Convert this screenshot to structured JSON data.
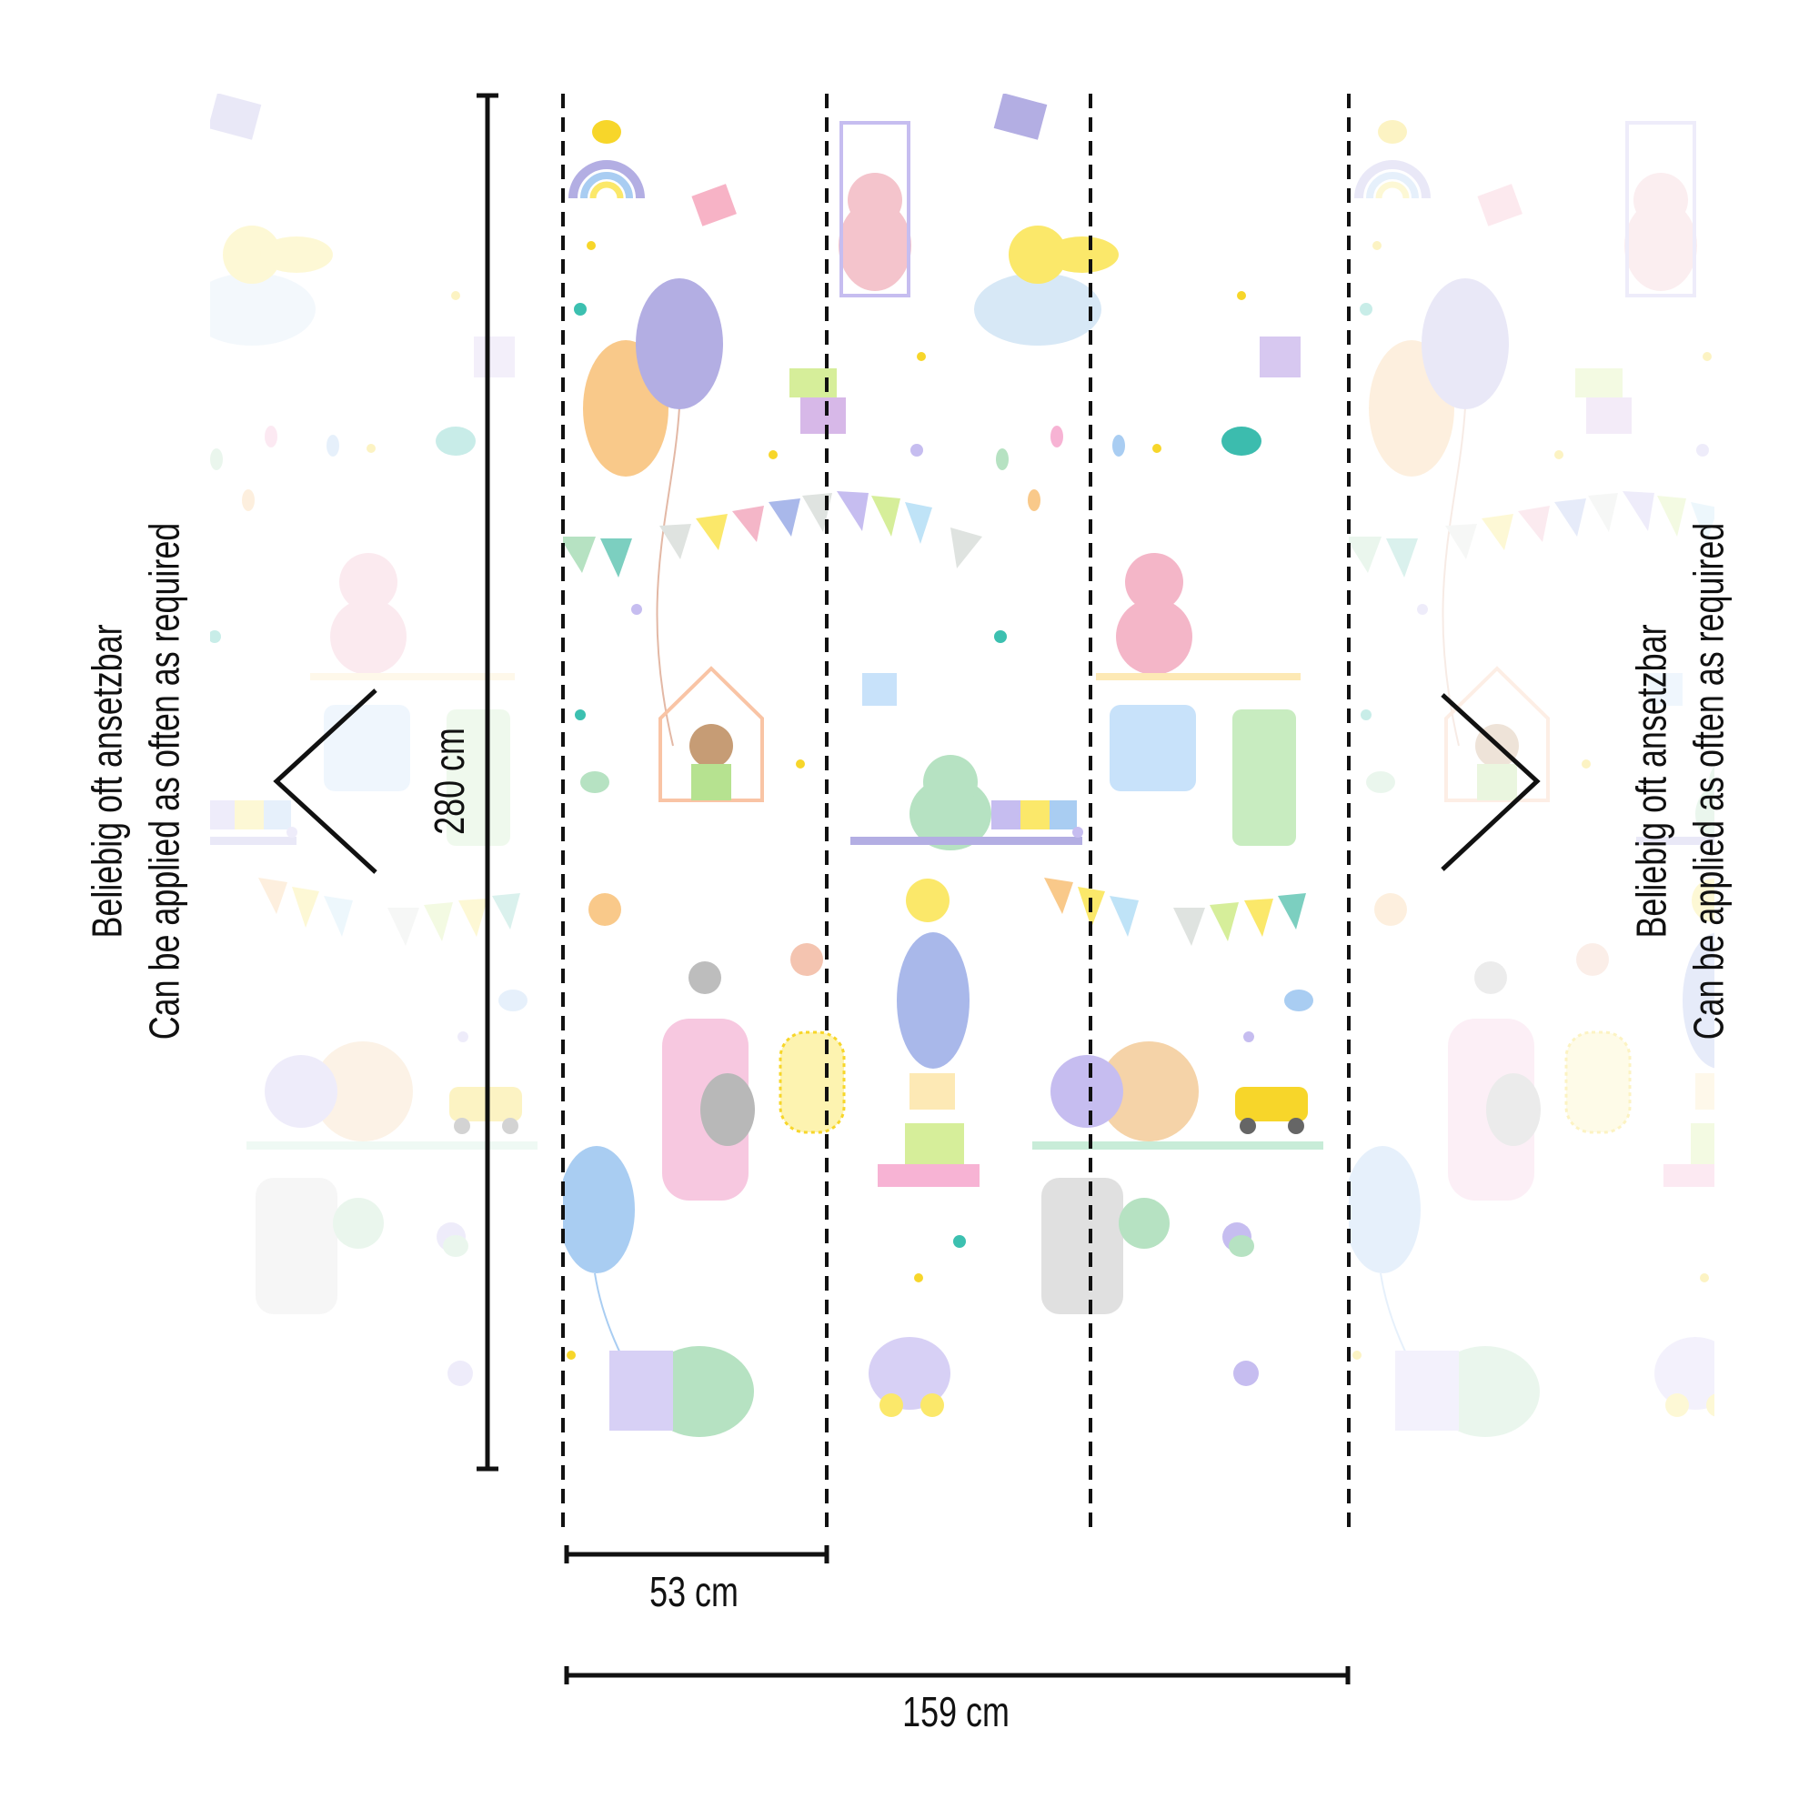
{
  "left_note": {
    "line1": "Beliebig oft ansetzbar",
    "line2": "Can be applied as often as required"
  },
  "right_note": {
    "line1": "Beliebig oft ansetzbar",
    "line2": "Can be applied as often as required"
  },
  "dimensions": {
    "height": "280 cm",
    "panel_width": "53 cm",
    "total_width": "159 cm"
  },
  "colors": {
    "lines": "#111111",
    "pink": "#f4b6c8",
    "purple": "#b3aee3",
    "orange": "#f9c98a",
    "blue": "#a9cdf2",
    "green": "#b6e2c2",
    "yellow": "#fbe86a",
    "teal": "#3cc0b0"
  }
}
